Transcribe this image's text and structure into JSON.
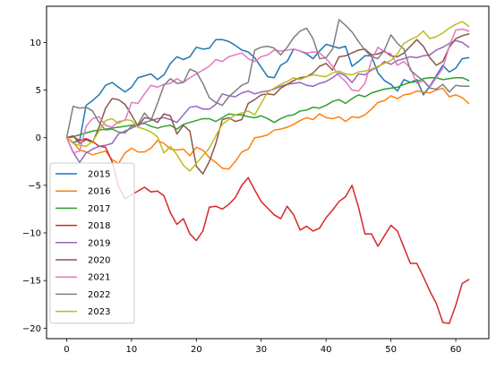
{
  "chart_data": {
    "type": "line",
    "title": "",
    "xlabel": "",
    "ylabel": "",
    "xlim": [
      -3.1,
      65.1
    ],
    "ylim": [
      -21.1,
      13.8
    ],
    "xticks": [
      0,
      10,
      20,
      30,
      40,
      50,
      60
    ],
    "yticks": [
      -20,
      -15,
      -10,
      -5,
      0,
      5,
      10
    ],
    "grid": false,
    "legend_position": "lower-left",
    "x": [
      0,
      1,
      2,
      3,
      4,
      5,
      6,
      7,
      8,
      9,
      10,
      11,
      12,
      13,
      14,
      15,
      16,
      17,
      18,
      19,
      20,
      21,
      22,
      23,
      24,
      25,
      26,
      27,
      28,
      29,
      30,
      31,
      32,
      33,
      34,
      35,
      36,
      37,
      38,
      39,
      40,
      41,
      42,
      43,
      44,
      45,
      46,
      47,
      48,
      49,
      50,
      51,
      52,
      53,
      54,
      55,
      56,
      57,
      58,
      59,
      60,
      61,
      62
    ],
    "series": [
      {
        "name": "2015",
        "color": "#1f77b4",
        "values": [
          0,
          -0.5,
          -0.3,
          3.4,
          3.9,
          4.5,
          5.5,
          5.8,
          5.3,
          4.8,
          5.3,
          6.3,
          6.5,
          6.7,
          6.1,
          6.6,
          7.8,
          8.5,
          8.2,
          8.5,
          9.5,
          9.3,
          9.4,
          10.3,
          10.3,
          10.1,
          9.7,
          9.2,
          9.0,
          8.4,
          7.4,
          6.4,
          6.3,
          7.6,
          8.0,
          9.3,
          9.1,
          8.8,
          8.3,
          9.1,
          9.8,
          9.6,
          9.4,
          9.6,
          7.5,
          8.0,
          8.6,
          8.6,
          6.8,
          6.0,
          5.6,
          4.9,
          6.1,
          5.8,
          6.1,
          4.5,
          5.4,
          6.5,
          7.6,
          6.9,
          7.3,
          8.3,
          8.4
        ]
      },
      {
        "name": "2016",
        "color": "#ff7f0e",
        "values": [
          0,
          -0.5,
          -1.3,
          -1.5,
          -1.8,
          -1.6,
          -1.4,
          -2.3,
          -2.7,
          -1.6,
          -1.1,
          -1.5,
          -1.5,
          -1.1,
          -0.3,
          -0.6,
          -1.2,
          -1.3,
          -1.2,
          -1.9,
          -1.0,
          -1.3,
          -2.1,
          -2.6,
          -3.2,
          -3.3,
          -2.5,
          -1.5,
          -1.2,
          0.0,
          0.1,
          0.3,
          0.8,
          0.9,
          1.1,
          1.4,
          1.8,
          2.1,
          1.9,
          2.5,
          2.1,
          2.0,
          2.2,
          1.7,
          2.2,
          2.1,
          2.4,
          3.0,
          3.7,
          3.9,
          4.4,
          4.1,
          4.5,
          4.6,
          4.9,
          4.8,
          4.7,
          5.0,
          5.2,
          4.3,
          4.5,
          4.2,
          3.6
        ]
      },
      {
        "name": "2017",
        "color": "#2ca02c",
        "values": [
          0,
          0.1,
          0.3,
          0.5,
          0.7,
          0.8,
          0.9,
          1.0,
          1.1,
          1.2,
          1.3,
          1.4,
          1.5,
          1.2,
          1.0,
          1.2,
          1.3,
          0.9,
          1.4,
          1.6,
          1.8,
          2.0,
          2.0,
          1.7,
          2.1,
          2.5,
          2.4,
          2.4,
          2.2,
          2.1,
          2.3,
          2.0,
          1.6,
          2.0,
          2.3,
          2.4,
          2.8,
          2.9,
          3.2,
          3.1,
          3.4,
          3.8,
          4.0,
          3.6,
          4.1,
          4.5,
          4.3,
          4.7,
          4.9,
          5.1,
          5.2,
          5.3,
          5.6,
          5.8,
          5.9,
          6.2,
          6.3,
          6.3,
          6.1,
          6.2,
          6.3,
          6.3,
          6.0
        ]
      },
      {
        "name": "2018",
        "color": "#d62728",
        "values": [
          0,
          0.1,
          -0.3,
          -0.1,
          -0.4,
          -0.9,
          -1.0,
          -2.5,
          -5.1,
          -6.4,
          -6.0,
          -5.6,
          -5.2,
          -5.7,
          -5.6,
          -6.1,
          -7.9,
          -9.1,
          -8.5,
          -10.1,
          -10.8,
          -9.8,
          -7.3,
          -7.2,
          -7.5,
          -7.0,
          -6.3,
          -5.0,
          -4.2,
          -5.5,
          -6.7,
          -7.4,
          -8.1,
          -8.5,
          -7.2,
          -8.1,
          -9.7,
          -9.3,
          -9.8,
          -9.5,
          -8.4,
          -7.6,
          -6.7,
          -6.2,
          -5.0,
          -7.3,
          -10.1,
          -10.1,
          -11.4,
          -10.3,
          -9.2,
          -9.8,
          -11.5,
          -13.2,
          -13.2,
          -14.6,
          -16.1,
          -17.4,
          -19.4,
          -19.5,
          -17.6,
          -15.3,
          -14.9
        ]
      },
      {
        "name": "2019",
        "color": "#9467bd",
        "values": [
          0,
          -1.5,
          -2.6,
          -1.6,
          -1.2,
          -0.9,
          -0.8,
          -0.6,
          0.4,
          0.7,
          1.0,
          1.3,
          1.6,
          1.8,
          2.0,
          2.1,
          1.9,
          1.6,
          2.4,
          3.2,
          3.3,
          3.0,
          3.0,
          3.5,
          4.6,
          4.4,
          4.3,
          4.7,
          4.9,
          4.6,
          4.8,
          4.9,
          5.1,
          5.4,
          5.6,
          5.7,
          5.8,
          5.5,
          5.4,
          5.7,
          5.9,
          6.3,
          6.8,
          6.5,
          5.8,
          6.7,
          6.6,
          7.1,
          7.4,
          8.0,
          7.7,
          8.1,
          8.3,
          8.5,
          8.4,
          8.6,
          8.7,
          9.2,
          9.5,
          9.9,
          10.2,
          10.0,
          9.5
        ]
      },
      {
        "name": "2020",
        "color": "#8c564b",
        "values": [
          0,
          0.2,
          -0.6,
          -0.2,
          -0.5,
          1.1,
          3.1,
          4.1,
          4.0,
          3.5,
          2.4,
          1.2,
          2.1,
          2.0,
          1.6,
          2.5,
          2.3,
          0.4,
          1.3,
          0.7,
          -3.0,
          -3.8,
          -2.5,
          -0.6,
          1.9,
          2.1,
          1.7,
          1.9,
          3.6,
          4.0,
          4.5,
          4.6,
          4.5,
          5.2,
          5.6,
          6.0,
          6.3,
          6.4,
          6.8,
          7.5,
          7.8,
          7.1,
          8.5,
          8.6,
          8.9,
          9.2,
          9.3,
          8.7,
          8.8,
          9.1,
          8.6,
          8.5,
          8.9,
          9.6,
          10.3,
          9.6,
          8.4,
          7.6,
          8.0,
          9.5,
          10.4,
          10.7,
          10.9
        ]
      },
      {
        "name": "2021",
        "color": "#e377c2",
        "values": [
          0,
          -1.6,
          -1.4,
          1.2,
          2.0,
          2.2,
          1.3,
          1.1,
          1.7,
          1.8,
          3.7,
          3.6,
          4.6,
          5.5,
          5.3,
          5.6,
          5.7,
          6.2,
          5.8,
          6.3,
          6.7,
          7.1,
          7.5,
          8.2,
          8.0,
          8.5,
          8.7,
          8.9,
          8.3,
          8.0,
          8.5,
          8.7,
          9.2,
          9.1,
          9.2,
          9.3,
          9.1,
          8.9,
          9.0,
          8.9,
          8.3,
          7.5,
          6.5,
          5.9,
          5.0,
          4.9,
          5.7,
          8.1,
          9.5,
          9.0,
          8.8,
          7.6,
          8.0,
          7.3,
          5.7,
          6.0,
          5.3,
          6.3,
          7.3,
          9.6,
          11.3,
          11.4,
          11.2
        ]
      },
      {
        "name": "2022",
        "color": "#7f7f7f",
        "values": [
          0,
          3.3,
          3.1,
          3.2,
          2.8,
          1.6,
          0.8,
          0.9,
          0.6,
          0.5,
          1.2,
          1.4,
          2.6,
          1.8,
          3.6,
          5.5,
          6.2,
          5.7,
          5.8,
          7.2,
          6.9,
          5.7,
          4.2,
          3.7,
          3.4,
          4.3,
          4.9,
          5.5,
          5.8,
          9.2,
          9.5,
          9.6,
          9.4,
          8.7,
          9.5,
          10.5,
          11.2,
          11.5,
          10.4,
          8.3,
          8.4,
          9.3,
          12.4,
          11.8,
          11.1,
          10.1,
          9.2,
          8.5,
          8.3,
          9.2,
          10.8,
          9.9,
          9.3,
          7.1,
          6.5,
          6.0,
          5.2,
          5.1,
          5.6,
          4.8,
          5.5,
          5.4,
          5.4
        ]
      },
      {
        "name": "2023",
        "color": "#bcbd22",
        "values": [
          0,
          -0.6,
          -0.8,
          -0.9,
          -0.4,
          0.7,
          1.8,
          2.0,
          1.5,
          1.9,
          1.8,
          1.1,
          0.9,
          0.6,
          0.1,
          -1.6,
          -0.9,
          -1.8,
          -2.9,
          -3.5,
          -2.7,
          -1.9,
          -1.1,
          0.2,
          1.4,
          1.9,
          2.4,
          2.6,
          2.8,
          2.4,
          3.6,
          4.8,
          5.2,
          5.6,
          5.9,
          6.3,
          6.1,
          6.4,
          6.6,
          6.5,
          6.4,
          6.8,
          7.0,
          6.7,
          6.6,
          6.9,
          7.0,
          7.2,
          7.5,
          7.8,
          8.1,
          8.8,
          9.9,
          10.3,
          10.6,
          11.2,
          10.4,
          10.6,
          11.0,
          11.5,
          11.9,
          12.2,
          11.7
        ]
      }
    ]
  }
}
